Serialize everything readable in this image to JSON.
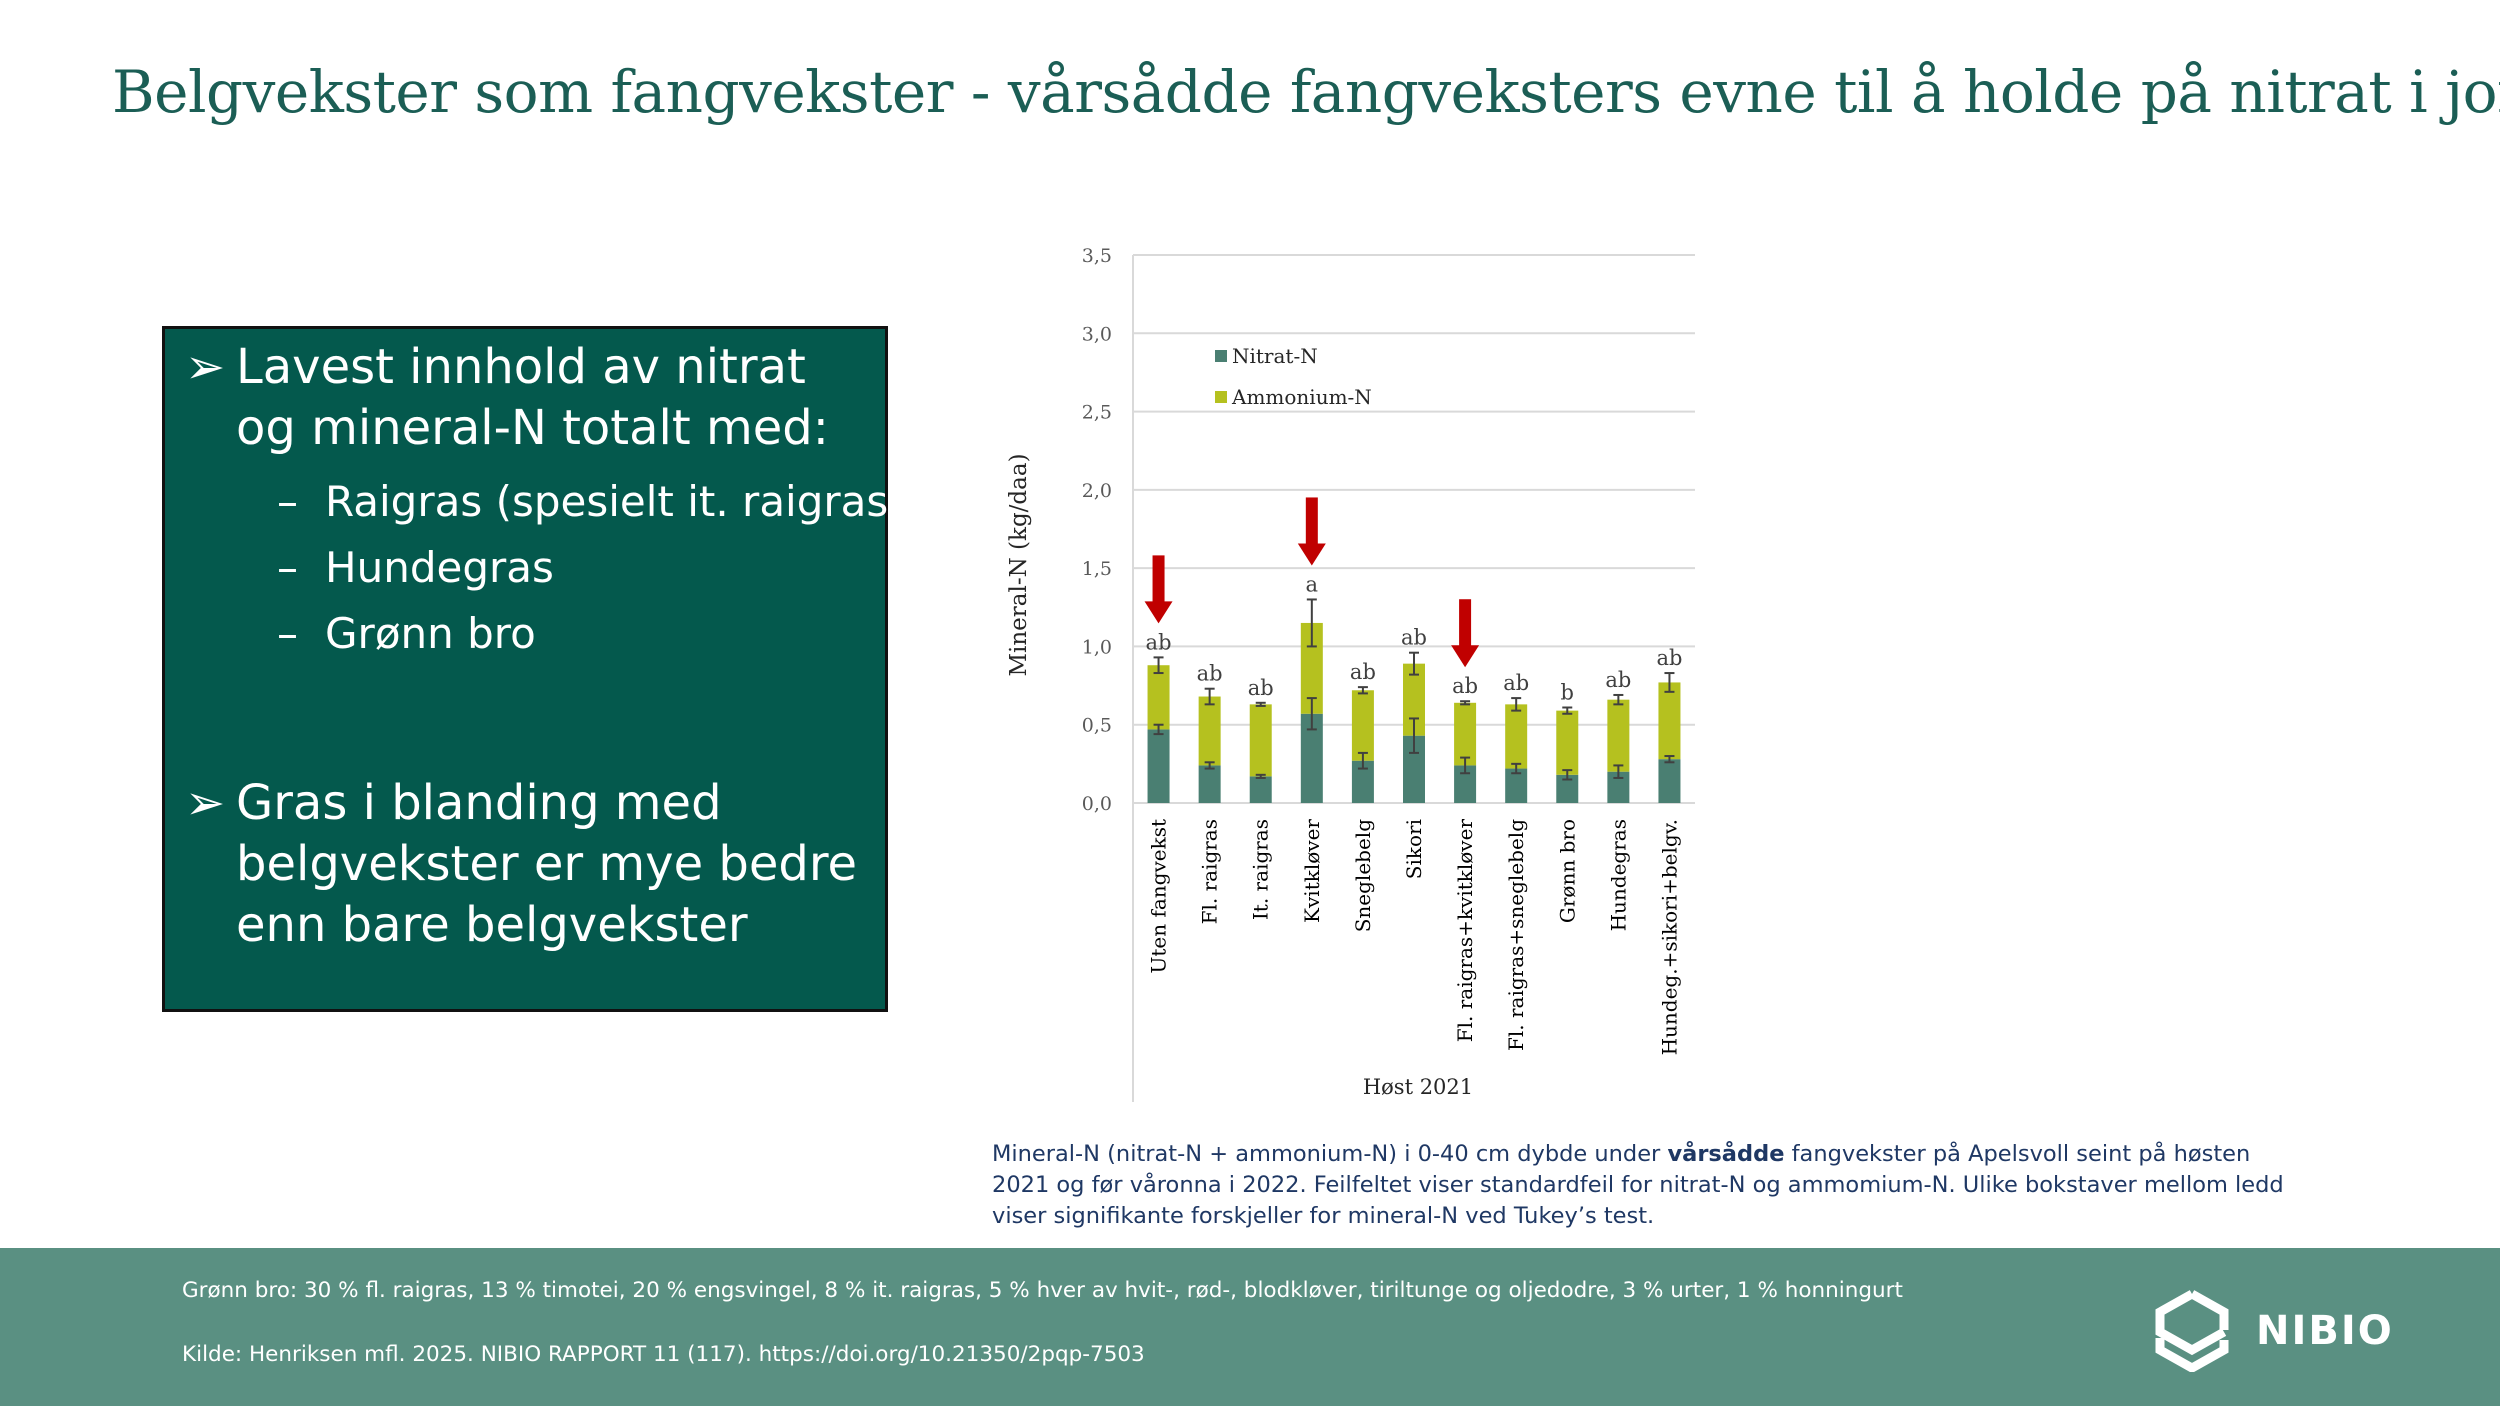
{
  "slide": {
    "title": "Belgvekster som fangvekster - vårsådde fangveksters evne til å holde på nitrat i jorda"
  },
  "summary_box": {
    "bullet_glyph": "➢",
    "bullet1": "Lavest innhold av nitrat og mineral-N totalt med:",
    "sub_dash": "–",
    "sub_items": [
      "Raigras (spesielt it. raigras)",
      "Hundegras",
      "Grønn bro"
    ],
    "bullet2": "Gras i blanding med belgvekster er mye bedre enn bare belgvekster"
  },
  "chart_data": {
    "type": "bar",
    "stacked": true,
    "categories": [
      "Uten fangvekst",
      "Fl. raigras",
      "It. raigras",
      "Kvitkløver",
      "Sneglebelg",
      "Sikori",
      "Fl. raigras+kvitkløver",
      "Fl. raigras+sneglebelg",
      "Grønn bro",
      "Hundegras",
      "Hundeg.+sikori+belgv."
    ],
    "series": [
      {
        "name": "Nitrat-N",
        "color": "#4a7f72",
        "values": [
          0.47,
          0.24,
          0.17,
          0.57,
          0.27,
          0.43,
          0.24,
          0.22,
          0.18,
          0.2,
          0.28
        ]
      },
      {
        "name": "Ammonium-N",
        "color": "#b5c11f",
        "values": [
          0.41,
          0.44,
          0.46,
          0.58,
          0.45,
          0.46,
          0.4,
          0.41,
          0.41,
          0.46,
          0.49
        ]
      }
    ],
    "error_nitrat": [
      0.03,
      0.02,
      0.01,
      0.1,
      0.05,
      0.11,
      0.05,
      0.03,
      0.03,
      0.04,
      0.02
    ],
    "error_total": [
      0.05,
      0.05,
      0.01,
      0.15,
      0.02,
      0.07,
      0.01,
      0.04,
      0.02,
      0.03,
      0.06
    ],
    "significance_letters": [
      "ab",
      "ab",
      "ab",
      "a",
      "ab",
      "ab",
      "ab",
      "ab",
      "b",
      "ab",
      "ab"
    ],
    "arrow_indices": [
      0,
      3,
      6
    ],
    "arrow_color": "#c00000",
    "ylabel": "Mineral-N (kg/daa)",
    "xlabel": "Høst 2021",
    "ylim": [
      0,
      3.5
    ],
    "yticks": [
      "0,0",
      "0,5",
      "1,0",
      "1,5",
      "2,0",
      "2,5",
      "3,0",
      "3,5"
    ],
    "grid": true,
    "legend_position": "top-left inside plot"
  },
  "caption": {
    "part1": "Mineral-N (nitrat-N + ammonium-N) i 0-40 cm dybde under ",
    "bold": "vårsådde",
    "part2": " fangvekster på Apelsvoll seint på høsten 2021 og før våronna i 2022. Feilfeltet viser standardfeil for nitrat-N og ammomium-N. Ulike bokstaver mellom ledd viser signifikante forskjeller for mineral-N ved Tukey’s test."
  },
  "footer": {
    "line1": "Grønn bro: 30 % fl. raigras, 13 % timotei, 20 % engsvingel, 8 % it. raigras, 5 % hver av hvit-, rød-, blodkløver, tiriltunge og oljedodre, 3 % urter, 1 % honningurt",
    "line2": "Kilde: Henriksen mfl. 2025. NIBIO RAPPORT 11 (117). https://doi.org/10.21350/2pqp-7503",
    "logo_text": "NIBIO"
  }
}
